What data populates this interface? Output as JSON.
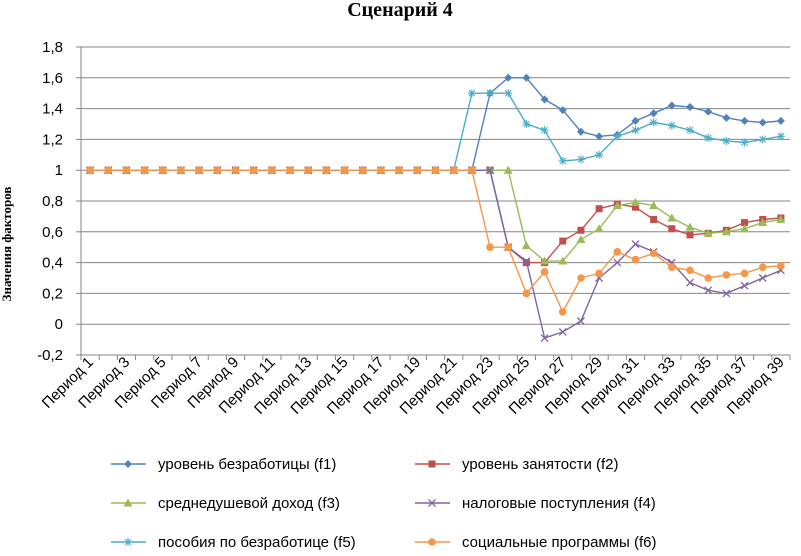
{
  "chart_data": {
    "type": "line",
    "title": "Сценарий 4",
    "xlabel": "",
    "ylabel": "Значения факторов",
    "ylim": [
      -0.2,
      1.8
    ],
    "yticks": [
      "1,8",
      "1,6",
      "1,4",
      "1,2",
      "1",
      "0,8",
      "0,6",
      "0,4",
      "0,2",
      "0",
      "-0,2"
    ],
    "ytick_values": [
      1.8,
      1.6,
      1.4,
      1.2,
      1.0,
      0.8,
      0.6,
      0.4,
      0.2,
      0.0,
      -0.2
    ],
    "grid": true,
    "legend_position": "bottom",
    "categories": [
      "Период 1",
      "Период 2",
      "Период 3",
      "Период 4",
      "Период 5",
      "Период 6",
      "Период 7",
      "Период 8",
      "Период 9",
      "Период 10",
      "Период 11",
      "Период 12",
      "Период 13",
      "Период 14",
      "Период 15",
      "Период 16",
      "Период 17",
      "Период 18",
      "Период 19",
      "Период 20",
      "Период 21",
      "Период 22",
      "Период 23",
      "Период 24",
      "Период 25",
      "Период 26",
      "Период 27",
      "Период 28",
      "Период 29",
      "Период 30",
      "Период 31",
      "Период 32",
      "Период 33",
      "Период 34",
      "Период 35",
      "Период 36",
      "Период 37",
      "Период 38",
      "Период 39"
    ],
    "xtick_labels": [
      "Период 1",
      "Период 3",
      "Период 5",
      "Период 7",
      "Период 9",
      "Период 11",
      "Период 13",
      "Период 15",
      "Период 17",
      "Период 19",
      "Период 21",
      "Период 23",
      "Период 25",
      "Период 27",
      "Период 29",
      "Период 31",
      "Период 33",
      "Период 35",
      "Период 37",
      "Период 39"
    ],
    "series": [
      {
        "name": "уровень безработицы (f1)",
        "color": "#4F81BD",
        "marker": "diamond",
        "values": [
          1,
          1,
          1,
          1,
          1,
          1,
          1,
          1,
          1,
          1,
          1,
          1,
          1,
          1,
          1,
          1,
          1,
          1,
          1,
          1,
          1,
          1,
          1.5,
          1.6,
          1.6,
          1.46,
          1.39,
          1.25,
          1.22,
          1.23,
          1.32,
          1.37,
          1.42,
          1.41,
          1.38,
          1.34,
          1.32,
          1.31,
          1.32
        ]
      },
      {
        "name": "уровень занятости (f2)",
        "color": "#C0504D",
        "marker": "square",
        "values": [
          1,
          1,
          1,
          1,
          1,
          1,
          1,
          1,
          1,
          1,
          1,
          1,
          1,
          1,
          1,
          1,
          1,
          1,
          1,
          1,
          1,
          1,
          1,
          0.5,
          0.4,
          0.4,
          0.54,
          0.61,
          0.75,
          0.78,
          0.76,
          0.68,
          0.62,
          0.58,
          0.59,
          0.61,
          0.66,
          0.68,
          0.69
        ]
      },
      {
        "name": "среднедушевой доход (f3)",
        "color": "#9BBB59",
        "marker": "triangle",
        "values": [
          1,
          1,
          1,
          1,
          1,
          1,
          1,
          1,
          1,
          1,
          1,
          1,
          1,
          1,
          1,
          1,
          1,
          1,
          1,
          1,
          1,
          1,
          1,
          1,
          0.51,
          0.41,
          0.41,
          0.55,
          0.62,
          0.77,
          0.79,
          0.77,
          0.69,
          0.63,
          0.59,
          0.6,
          0.62,
          0.66,
          0.68
        ]
      },
      {
        "name": "налоговые поступления (f4)",
        "color": "#8064A2",
        "marker": "x",
        "values": [
          1,
          1,
          1,
          1,
          1,
          1,
          1,
          1,
          1,
          1,
          1,
          1,
          1,
          1,
          1,
          1,
          1,
          1,
          1,
          1,
          1,
          1,
          1,
          0.5,
          0.41,
          -0.09,
          -0.05,
          0.02,
          0.3,
          0.4,
          0.52,
          0.47,
          0.4,
          0.27,
          0.22,
          0.2,
          0.25,
          0.3,
          0.35
        ]
      },
      {
        "name": "пособия по безработице (f5)",
        "color": "#4BACC6",
        "marker": "star",
        "values": [
          1,
          1,
          1,
          1,
          1,
          1,
          1,
          1,
          1,
          1,
          1,
          1,
          1,
          1,
          1,
          1,
          1,
          1,
          1,
          1,
          1,
          1.5,
          1.5,
          1.5,
          1.3,
          1.26,
          1.06,
          1.07,
          1.1,
          1.22,
          1.26,
          1.31,
          1.29,
          1.26,
          1.21,
          1.19,
          1.18,
          1.2,
          1.22
        ]
      },
      {
        "name": "социальные программы (f6)",
        "color": "#F79646",
        "marker": "circle",
        "values": [
          1,
          1,
          1,
          1,
          1,
          1,
          1,
          1,
          1,
          1,
          1,
          1,
          1,
          1,
          1,
          1,
          1,
          1,
          1,
          1,
          1,
          1,
          0.5,
          0.5,
          0.2,
          0.34,
          0.08,
          0.3,
          0.33,
          0.47,
          0.42,
          0.46,
          0.37,
          0.35,
          0.3,
          0.32,
          0.33,
          0.37,
          0.38
        ]
      }
    ]
  }
}
